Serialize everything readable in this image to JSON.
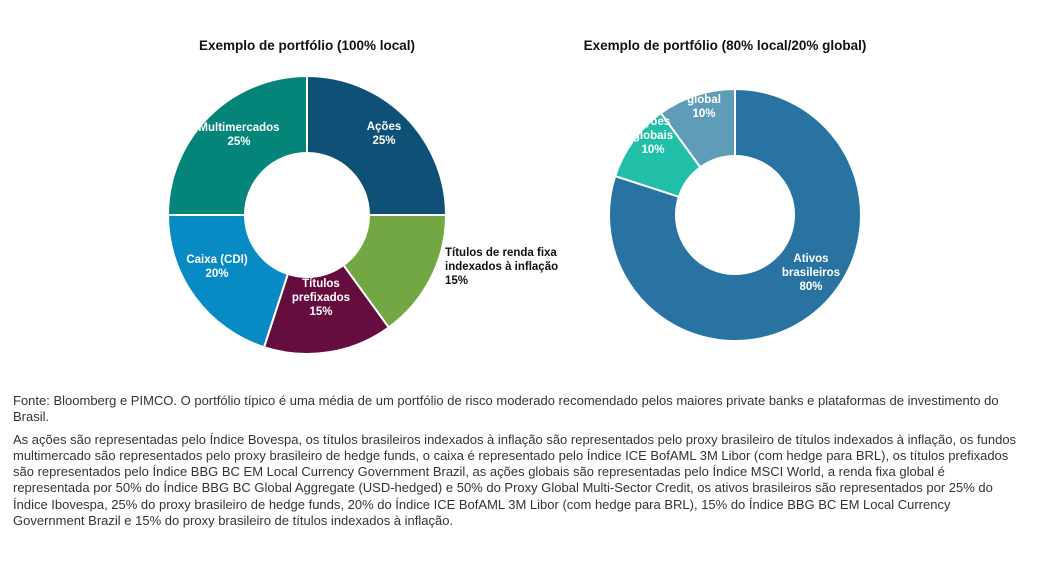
{
  "chart_data": [
    {
      "type": "pie",
      "title": "Exemplo de portfólio (100% local)",
      "slices": [
        {
          "label": "Ações",
          "value": 25,
          "value_label": "25%",
          "color": "#0f5176"
        },
        {
          "label": "Títulos de renda fixa indexados à inflação",
          "value": 15,
          "value_label": "15%",
          "color": "#72a743"
        },
        {
          "label": "Títulos prefixados",
          "value": 15,
          "value_label": "15%",
          "color": "#640d3e"
        },
        {
          "label": "Caixa (CDI)",
          "value": 20,
          "value_label": "20%",
          "color": "#088ac4"
        },
        {
          "label": "Multimercados",
          "value": 25,
          "value_label": "25%",
          "color": "#05857a"
        }
      ]
    },
    {
      "type": "pie",
      "title": "Exemplo de portfólio (80% local/20% global)",
      "slices": [
        {
          "label": "Ativos brasileiros",
          "value": 80,
          "value_label": "80%",
          "color": "#2873a2"
        },
        {
          "label": "Ações globais",
          "value": 10,
          "value_label": "10%",
          "color": "#22bfa8"
        },
        {
          "label": "Renda fixa global",
          "value": 10,
          "value_label": "10%",
          "color": "#5e9cb7"
        }
      ]
    }
  ],
  "notes": {
    "source": "Fonte: Bloomberg e PIMCO. O portfólio típico é uma média de um portfólio de risco moderado recomendado pelos maiores private banks e plataformas de investimento do Brasil.",
    "description": "As ações são representadas pelo Índice Bovespa, os títulos brasileiros indexados à inflação são representados pelo proxy brasileiro de títulos indexados à inflação, os fundos multimercado são representados pelo proxy brasileiro de hedge funds, o caixa é representado pelo Índice ICE BofAML 3M Libor (com hedge para BRL), os títulos prefixados são representados pelo Índice BBG BC EM Local Currency Government Brazil, as ações globais são representadas pelo Índice MSCI World, a renda fixa global é representada por 50% do Índice BBG BC Global Aggregate (USD-hedged) e 50% do Proxy Global Multi-Sector Credit, os ativos brasileiros são representados por 25% do Índice Ibovespa, 25% do proxy brasileiro de hedge funds, 20% do Índice ICE BofAML 3M Libor (com hedge para BRL), 15% do Índice BBG BC EM Local Currency Government Brazil e 15% do proxy brasileiro de títulos indexados à inflação."
  }
}
